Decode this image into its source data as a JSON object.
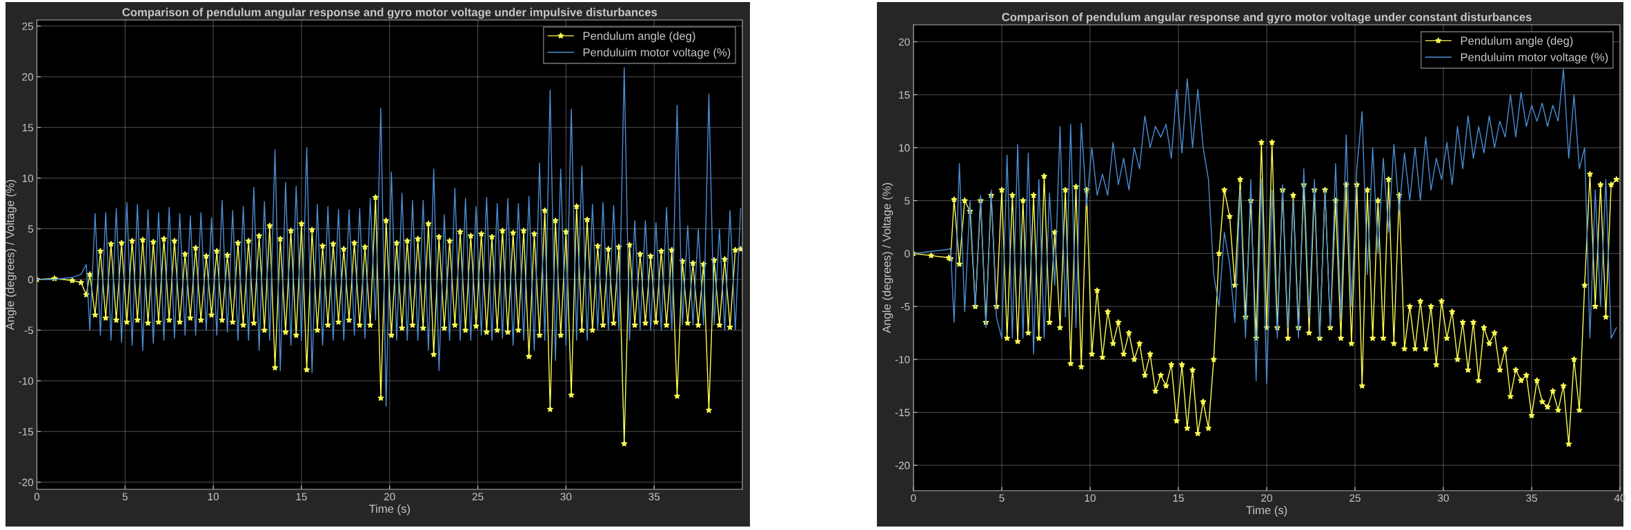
{
  "chart_data": [
    {
      "type": "line",
      "title": "Comparison of pendulum angular response and gyro motor voltage under impulsive disturbances",
      "xlabel": "Time (s)",
      "ylabel": "Angle (degrees) / Voltage (%)",
      "x": [
        0,
        1,
        2,
        2.5,
        2.8,
        3.0,
        3.3,
        3.6,
        3.9,
        4.2,
        4.5,
        4.8,
        5.1,
        5.4,
        5.7,
        6.0,
        6.3,
        6.6,
        6.9,
        7.2,
        7.5,
        7.8,
        8.1,
        8.4,
        8.7,
        9.0,
        9.3,
        9.6,
        9.9,
        10.2,
        10.5,
        10.8,
        11.1,
        11.4,
        11.7,
        12.0,
        12.3,
        12.6,
        12.9,
        13.2,
        13.5,
        13.8,
        14.1,
        14.4,
        14.7,
        15.0,
        15.3,
        15.6,
        15.9,
        16.2,
        16.5,
        16.8,
        17.1,
        17.4,
        17.7,
        18.0,
        18.3,
        18.6,
        18.9,
        19.2,
        19.5,
        19.8,
        20.1,
        20.4,
        20.7,
        21.0,
        21.3,
        21.6,
        21.9,
        22.2,
        22.5,
        22.8,
        23.1,
        23.4,
        23.7,
        24.0,
        24.3,
        24.6,
        24.9,
        25.2,
        25.5,
        25.8,
        26.1,
        26.4,
        26.7,
        27.0,
        27.3,
        27.6,
        27.9,
        28.2,
        28.5,
        28.8,
        29.1,
        29.4,
        29.7,
        30.0,
        30.3,
        30.6,
        30.9,
        31.2,
        31.5,
        31.8,
        32.1,
        32.4,
        32.7,
        33.0,
        33.3,
        33.6,
        33.9,
        34.2,
        34.5,
        34.8,
        35.1,
        35.4,
        35.7,
        36.0,
        36.3,
        36.6,
        36.9,
        37.2,
        37.5,
        37.8,
        38.1,
        38.4,
        38.7,
        39.0,
        39.3,
        39.6,
        39.9
      ],
      "series": [
        {
          "name": "Pendulum angle (deg)",
          "color": "#ffff55",
          "marker": "star",
          "values": [
            0,
            0.1,
            -0.1,
            -0.3,
            -1.5,
            0.5,
            -3.5,
            2.8,
            -3.8,
            3.5,
            -4,
            3.6,
            -4.2,
            3.8,
            -4,
            3.9,
            -4.3,
            3.7,
            -4.2,
            4,
            -4,
            3.8,
            -4.2,
            2.5,
            -3.8,
            3.1,
            -4,
            2.3,
            -3.5,
            2.8,
            -4,
            2.4,
            -4.2,
            3.6,
            -4.5,
            3.8,
            -4.3,
            4.3,
            -5,
            5.3,
            -8.7,
            4,
            -5.2,
            4.8,
            -5.5,
            5.5,
            -8.9,
            4.9,
            -5,
            3.3,
            -4.5,
            3.5,
            -4.2,
            3,
            -4,
            3.6,
            -4.5,
            3.2,
            -4.5,
            8.1,
            -11.7,
            5.8,
            -5.5,
            3.6,
            -4.8,
            3.8,
            -4.5,
            4,
            -4.8,
            5.5,
            -7.4,
            4.2,
            -4.8,
            3.8,
            -4.5,
            4.7,
            -5,
            4.3,
            -4.6,
            4.5,
            -5.2,
            4.2,
            -5,
            4.8,
            -5.2,
            4.6,
            -5,
            4.8,
            -7.6,
            4.5,
            -5.5,
            6.8,
            -12.8,
            5.8,
            -5.5,
            4.7,
            -11.4,
            7.2,
            -5,
            5.9,
            -5,
            3.3,
            -4.5,
            3,
            -4.3,
            3.2,
            -16.2,
            3.4,
            -4.5,
            2.5,
            -4.3,
            2.3,
            -4.2,
            2.8,
            -4.5,
            2.9,
            -11.5,
            1.8,
            -4.3,
            1.6,
            -4.5,
            1.5,
            -12.9,
            1.9,
            -4.5,
            2,
            -4.7,
            2.9,
            3
          ]
        },
        {
          "name": "Penduluim motor voltage (%)",
          "color": "#4a8fd6",
          "marker": "none",
          "values": [
            0,
            0,
            0.2,
            0.5,
            1.5,
            -5,
            6.5,
            -5.5,
            6.6,
            -6,
            7,
            -6.2,
            7.6,
            -6.5,
            7.4,
            -7,
            6.9,
            -6.3,
            6.6,
            -6,
            7.1,
            -5.8,
            6.5,
            -5.5,
            6.3,
            -5.5,
            6.6,
            -5,
            6.1,
            -5.5,
            7.8,
            -5.2,
            6.8,
            -6,
            7.2,
            -6,
            9.1,
            -7,
            7.7,
            -6,
            12.8,
            -9,
            9.6,
            -6.5,
            9.2,
            -6,
            13,
            -9.2,
            7.4,
            -6.5,
            7.2,
            -6,
            6.9,
            -6,
            6.9,
            -5.5,
            7,
            -5.8,
            8,
            -4,
            16.9,
            -12.5,
            10.6,
            -6,
            8.5,
            -6,
            7.8,
            -6,
            7.8,
            -7,
            10.9,
            -9,
            6.4,
            -6,
            9,
            -6,
            8,
            -6,
            7.2,
            -5.5,
            8.1,
            -6,
            7.5,
            -5.8,
            8,
            -6.5,
            7.5,
            -6,
            8.2,
            -7,
            11.5,
            -6,
            18.7,
            -8,
            10.9,
            -6.5,
            16.8,
            -6,
            11.2,
            -6,
            7.4,
            -5,
            7.6,
            -5,
            7.3,
            -5,
            20.9,
            -6,
            5.8,
            -5,
            5.8,
            -5,
            5.6,
            -5,
            7.1,
            -5,
            17.2,
            -4.5,
            5.3,
            -4.5,
            5,
            -4.5,
            18.3,
            -4.5,
            5,
            -5,
            6.8,
            -5,
            7
          ]
        }
      ],
      "xlim": [
        0,
        40
      ],
      "ylim": [
        -20.7,
        25.6
      ],
      "xticks": [
        0,
        5,
        10,
        15,
        20,
        25,
        30,
        35
      ],
      "yticks": [
        -20,
        -15,
        -10,
        -5,
        0,
        5,
        10,
        15,
        20,
        25
      ],
      "grid": true,
      "legend": "top right"
    },
    {
      "type": "line",
      "title": "Comparison of pendulum angular response and gyro motor voltage under constant disturbances",
      "xlabel": "Time (s)",
      "ylabel": "Angle (degrees) / Voltage (%)",
      "x": [
        0,
        1,
        2,
        2.1,
        2.3,
        2.6,
        2.9,
        3.2,
        3.5,
        3.8,
        4.1,
        4.4,
        4.7,
        5.0,
        5.3,
        5.6,
        5.9,
        6.2,
        6.5,
        6.8,
        7.1,
        7.4,
        7.7,
        8.0,
        8.3,
        8.6,
        8.9,
        9.2,
        9.5,
        9.8,
        10.1,
        10.4,
        10.7,
        11.0,
        11.3,
        11.6,
        11.9,
        12.2,
        12.5,
        12.8,
        13.1,
        13.4,
        13.7,
        14.0,
        14.3,
        14.6,
        14.9,
        15.2,
        15.5,
        15.8,
        16.1,
        16.4,
        16.7,
        17.0,
        17.3,
        17.6,
        17.9,
        18.2,
        18.5,
        18.8,
        19.1,
        19.4,
        19.7,
        20.0,
        20.3,
        20.6,
        20.9,
        21.2,
        21.5,
        21.8,
        22.1,
        22.4,
        22.7,
        23.0,
        23.3,
        23.6,
        23.9,
        24.2,
        24.5,
        24.8,
        25.1,
        25.4,
        25.7,
        26.0,
        26.3,
        26.6,
        26.9,
        27.2,
        27.5,
        27.8,
        28.1,
        28.4,
        28.7,
        29.0,
        29.3,
        29.6,
        29.9,
        30.2,
        30.5,
        30.8,
        31.1,
        31.4,
        31.7,
        32.0,
        32.3,
        32.6,
        32.9,
        33.2,
        33.5,
        33.8,
        34.1,
        34.4,
        34.7,
        35.0,
        35.3,
        35.6,
        35.9,
        36.2,
        36.5,
        36.8,
        37.1,
        37.4,
        37.7,
        38.0,
        38.3,
        38.6,
        38.9,
        39.2,
        39.5,
        39.8
      ],
      "series": [
        {
          "name": "Pendulum angle (deg)",
          "color": "#ffff55",
          "marker": "star",
          "values": [
            0,
            -0.2,
            -0.4,
            -0.5,
            5.1,
            -1,
            5,
            4,
            -5,
            5,
            -6.5,
            5.5,
            -5,
            6,
            -8,
            5.5,
            -8.3,
            5,
            -7.5,
            5.5,
            -8,
            7.3,
            -6.5,
            2,
            -7,
            6,
            -10.4,
            6.3,
            -10.7,
            6,
            -9.5,
            -3.5,
            -9.8,
            -5.5,
            -8.5,
            -6.5,
            -9.5,
            -7.5,
            -10,
            -8.5,
            -11.5,
            -9.5,
            -13,
            -11.5,
            -12.5,
            -10.5,
            -15.8,
            -10.5,
            -16.5,
            -11,
            -17,
            -14,
            -16.5,
            -10,
            0,
            6,
            3.5,
            -3,
            7,
            -6,
            5,
            -8,
            10.5,
            -7,
            10.5,
            -7,
            6,
            -8,
            5.5,
            -7,
            6.5,
            -7.5,
            6,
            -8,
            6,
            -7,
            5,
            -8,
            6.5,
            -8.5,
            6.5,
            -12.5,
            6,
            -8,
            5,
            -8,
            7,
            -8.5,
            5.5,
            -9,
            -5,
            -9,
            -4.5,
            -9,
            -5,
            -10.5,
            -4.5,
            -8,
            -5.5,
            -10,
            -6.5,
            -11,
            -6.5,
            -12,
            -7,
            -8.5,
            -7.5,
            -11,
            -9,
            -13.5,
            -11,
            -12,
            -11.5,
            -15.3,
            -12,
            -14,
            -14.5,
            -13,
            -14.8,
            -12.5,
            -18,
            -10,
            -14.8,
            -3,
            7.5,
            -5,
            6.5,
            -6,
            6.5,
            7
          ]
        },
        {
          "name": "Penduluim motor voltage (%)",
          "color": "#4a8fd6",
          "marker": "none",
          "values": [
            0,
            0.2,
            0.4,
            0.5,
            -6.5,
            8.5,
            -5.5,
            5,
            -5,
            5.5,
            -7,
            6,
            -6,
            -8,
            9.3,
            -8,
            10.3,
            -8,
            9.5,
            -9.5,
            7,
            -8,
            5.7,
            -3,
            12,
            -6,
            12.2,
            -7,
            12.3,
            4.5,
            10,
            5.5,
            7.5,
            5.5,
            10.5,
            6.5,
            9,
            6,
            10,
            8,
            13,
            10,
            12,
            11,
            12.2,
            9,
            15.5,
            9.5,
            16.5,
            10,
            15.5,
            10,
            7,
            -2,
            -5,
            2,
            -1,
            -6.5,
            6,
            -8,
            7,
            -12,
            7,
            -12.3,
            6,
            -8,
            6.5,
            -7,
            5,
            -8,
            8,
            -6,
            7,
            -8,
            6,
            -7,
            8.5,
            -6,
            11.2,
            -5,
            8,
            13.4,
            -2,
            10,
            0,
            9,
            2,
            10.3,
            4,
            9.5,
            5,
            10,
            5,
            11,
            6,
            9,
            7,
            10.5,
            6.5,
            12,
            8,
            13,
            9,
            12,
            9.5,
            13,
            10,
            12.5,
            11,
            15,
            11,
            15.2,
            12,
            14,
            12.5,
            14.2,
            12,
            14,
            12.5,
            17.4,
            9,
            15,
            8,
            10,
            -8,
            6,
            -5,
            7,
            -8,
            -7
          ]
        }
      ],
      "xlim": [
        0,
        40
      ],
      "ylim": [
        -22.4,
        21.6
      ],
      "xticks": [
        0,
        5,
        10,
        15,
        20,
        25,
        30,
        35,
        40
      ],
      "yticks": [
        -20,
        -15,
        -10,
        -5,
        0,
        5,
        10,
        15,
        20
      ],
      "grid": true,
      "legend": "top right"
    }
  ]
}
